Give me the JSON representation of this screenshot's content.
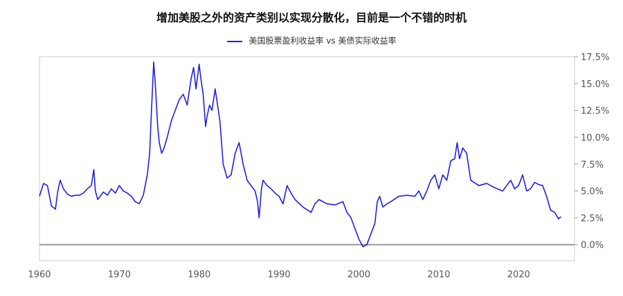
{
  "chart_data": {
    "type": "line",
    "title": "增加美股之外的资产类别以实现分散化，目前是一个不错的时机",
    "xlabel": "",
    "ylabel": "",
    "xlim": [
      1960,
      2027
    ],
    "ylim": [
      -1.5,
      17.5
    ],
    "x_ticks": [
      1960,
      1970,
      1980,
      1990,
      2000,
      2010,
      2020
    ],
    "x_tick_labels": [
      "1960",
      "1970",
      "1980",
      "1990",
      "2000",
      "2010",
      "2020"
    ],
    "y_ticks": [
      0,
      2.5,
      5,
      7.5,
      10,
      12.5,
      15,
      17.5
    ],
    "y_tick_labels": [
      "0.0%",
      "2.5%",
      "5.0%",
      "7.5%",
      "10.0%",
      "12.5%",
      "15.0%",
      "17.5%"
    ],
    "y_axis_side": "right",
    "grid": false,
    "zero_line": true,
    "legend": "top-center",
    "series": [
      {
        "name": "美国股票盈利收益率 vs 美债实际收益率",
        "color": "#1f1fe6",
        "x": [
          1960,
          1960.5,
          1961,
          1961.5,
          1962,
          1962.3,
          1962.6,
          1963,
          1963.5,
          1964,
          1964.5,
          1965,
          1965.5,
          1966,
          1966.5,
          1966.8,
          1967,
          1967.3,
          1967.6,
          1968,
          1968.5,
          1969,
          1969.5,
          1970,
          1970.5,
          1971,
          1971.5,
          1972,
          1972.5,
          1973,
          1973.5,
          1973.8,
          1974,
          1974.3,
          1974.5,
          1974.8,
          1975,
          1975.3,
          1975.6,
          1976,
          1976.5,
          1977,
          1977.5,
          1978,
          1978.5,
          1979,
          1979.3,
          1979.6,
          1980,
          1980.2,
          1980.5,
          1980.8,
          1981,
          1981.3,
          1981.6,
          1982,
          1982.3,
          1982.6,
          1983,
          1983.5,
          1984,
          1984.5,
          1985,
          1985.5,
          1986,
          1986.5,
          1987,
          1987.3,
          1987.5,
          1987.8,
          1988,
          1988.5,
          1989,
          1989.5,
          1990,
          1990.5,
          1991,
          1991.5,
          1992,
          1993,
          1994,
          1994.5,
          1995,
          1996,
          1997,
          1998,
          1998.5,
          1999,
          1999.5,
          2000,
          2000.5,
          2001,
          2001.5,
          2002,
          2002.3,
          2002.6,
          2003,
          2003.5,
          2004,
          2005,
          2006,
          2007,
          2007.5,
          2008,
          2008.5,
          2009,
          2009.5,
          2010,
          2010.5,
          2011,
          2011.5,
          2012,
          2012.3,
          2012.6,
          2013,
          2013.5,
          2014,
          2015,
          2016,
          2017,
          2018,
          2018.5,
          2019,
          2019.5,
          2020,
          2020.5,
          2021,
          2021.5,
          2022,
          2022.5,
          2023,
          2023.5,
          2024,
          2024.5,
          2025,
          2025.3
        ],
        "y": [
          4.5,
          5.7,
          5.5,
          3.6,
          3.3,
          5.0,
          6.0,
          5.2,
          4.7,
          4.5,
          4.6,
          4.6,
          4.8,
          5.2,
          5.5,
          7.0,
          5.0,
          4.2,
          4.5,
          4.9,
          4.6,
          5.2,
          4.8,
          5.5,
          5.0,
          4.8,
          4.5,
          4.0,
          3.8,
          4.6,
          6.5,
          8.5,
          12.0,
          17.0,
          15.0,
          11.0,
          9.5,
          8.5,
          9.0,
          10.0,
          11.5,
          12.5,
          13.5,
          14.0,
          13.0,
          15.5,
          16.5,
          14.5,
          16.8,
          15.5,
          14.0,
          11.0,
          12.0,
          13.0,
          12.5,
          14.5,
          13.0,
          11.5,
          7.5,
          6.2,
          6.5,
          8.5,
          9.5,
          7.5,
          6.0,
          5.5,
          5.0,
          4.0,
          2.5,
          5.2,
          6.0,
          5.5,
          5.2,
          4.8,
          4.5,
          3.8,
          5.5,
          4.8,
          4.2,
          3.5,
          3.0,
          3.8,
          4.2,
          3.8,
          3.7,
          4.0,
          3.0,
          2.5,
          1.5,
          0.5,
          -0.2,
          0.0,
          1.0,
          2.0,
          4.0,
          4.5,
          3.5,
          3.8,
          4.0,
          4.5,
          4.6,
          4.5,
          5.0,
          4.2,
          5.0,
          6.0,
          6.5,
          5.2,
          6.5,
          6.0,
          7.8,
          8.0,
          9.5,
          8.0,
          9.0,
          8.5,
          6.0,
          5.5,
          5.7,
          5.3,
          5.0,
          5.5,
          6.0,
          5.2,
          5.5,
          6.5,
          5.0,
          5.2,
          5.8,
          5.6,
          5.5,
          4.5,
          3.2,
          3.0,
          2.4,
          2.6
        ]
      }
    ]
  }
}
